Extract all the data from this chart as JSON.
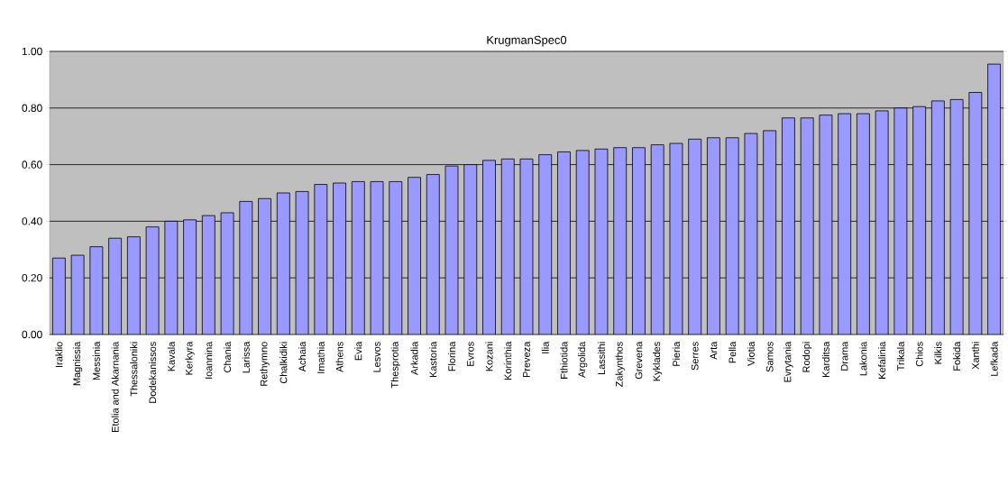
{
  "chart_data": {
    "type": "bar",
    "title": "KrugmanSpec0",
    "categories": [
      "Iraklio",
      "Magnissia",
      "Messinia",
      "Etolia and Akarnania",
      "Thessaloniki",
      "Dodekanissos",
      "Kavala",
      "Kerkyra",
      "Ioannina",
      "Chania",
      "Larissa",
      "Rethymno",
      "Chalkidiki",
      "Achaia",
      "Imathia",
      "Athens",
      "Evia",
      "Lesvos",
      "Thesprotia",
      "Arkadia",
      "Kastoria",
      "Florina",
      "Evros",
      "Kozani",
      "Korinthia",
      "Preveza",
      "Ilia",
      "Fthiotida",
      "Argolida",
      "Lassithi",
      "Zakynthos",
      "Grevena",
      "Kyklades",
      "Pieria",
      "Serres",
      "Arta",
      "Pella",
      "Viotia",
      "Samos",
      "Evrytania",
      "Rodopi",
      "Karditsa",
      "Drama",
      "Lakonia",
      "Kefalinia",
      "Trikala",
      "Chios",
      "Kilkis",
      "Fokida",
      "Xanthi",
      "Lefkada"
    ],
    "values": [
      0.27,
      0.28,
      0.31,
      0.34,
      0.345,
      0.38,
      0.4,
      0.405,
      0.42,
      0.43,
      0.47,
      0.48,
      0.5,
      0.505,
      0.53,
      0.535,
      0.54,
      0.54,
      0.54,
      0.555,
      0.565,
      0.595,
      0.6,
      0.615,
      0.62,
      0.62,
      0.635,
      0.645,
      0.65,
      0.655,
      0.66,
      0.66,
      0.67,
      0.675,
      0.69,
      0.695,
      0.695,
      0.71,
      0.72,
      0.765,
      0.765,
      0.775,
      0.78,
      0.78,
      0.79,
      0.8,
      0.805,
      0.825,
      0.83,
      0.855,
      0.955
    ],
    "color": "#9999ff",
    "ylim": [
      0,
      1
    ],
    "yticks": [
      {
        "value": 0,
        "label": "0.00"
      },
      {
        "value": 0.2,
        "label": "0.20"
      },
      {
        "value": 0.4,
        "label": "0.40"
      },
      {
        "value": 0.6,
        "label": "0.60"
      },
      {
        "value": 0.8,
        "label": "0.80"
      },
      {
        "value": 1,
        "label": "1.00"
      }
    ],
    "grid": "y"
  }
}
